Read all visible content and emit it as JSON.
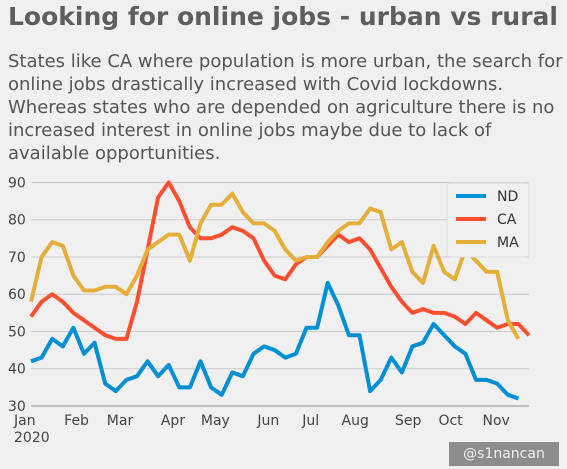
{
  "title": "Looking for online jobs - urban vs rural",
  "subtitle": "States like CA where population is more urban, the search for online jobs drastically increased with Covid lockdowns. Whereas states who are depended on agriculture there is no increased interest in online jobs maybe due to lack of available opportunities.",
  "watermark": "@s1nancan",
  "chart_data": {
    "type": "line",
    "xlabel": "",
    "ylabel": "",
    "ylim": [
      30,
      92
    ],
    "yticks": [
      30,
      40,
      50,
      60,
      70,
      80,
      90
    ],
    "grid": true,
    "legend": "top-right",
    "x_tick_labels": [
      {
        "week": 0,
        "label": "Jan",
        "sublabel": "2020"
      },
      {
        "week": 4.3,
        "label": "Feb"
      },
      {
        "week": 8.4,
        "label": "Mar"
      },
      {
        "week": 13.4,
        "label": "Apr"
      },
      {
        "week": 17.4,
        "label": "May"
      },
      {
        "week": 22.4,
        "label": "Jun"
      },
      {
        "week": 26.4,
        "label": "Jul"
      },
      {
        "week": 30.6,
        "label": "Aug"
      },
      {
        "week": 35.6,
        "label": "Sep"
      },
      {
        "week": 39.6,
        "label": "Oct"
      },
      {
        "week": 43.9,
        "label": "Nov"
      }
    ],
    "series": [
      {
        "name": "ND",
        "color": "#008fd5",
        "values": [
          42,
          43,
          48,
          46,
          51,
          44,
          47,
          36,
          34,
          37,
          38,
          42,
          38,
          41,
          35,
          35,
          42,
          35,
          33,
          39,
          38,
          44,
          46,
          45,
          43,
          44,
          51,
          51,
          63,
          57,
          49,
          49,
          34,
          37,
          43,
          39,
          46,
          47,
          52,
          49,
          46,
          44,
          37,
          37,
          36,
          33,
          32
        ]
      },
      {
        "name": "CA",
        "color": "#fc4f30",
        "values": [
          54,
          58,
          60,
          58,
          55,
          53,
          51,
          49,
          48,
          48,
          58,
          72,
          86,
          90,
          85,
          78,
          75,
          75,
          76,
          78,
          77,
          75,
          69,
          65,
          64,
          68,
          70,
          70,
          73,
          76,
          74,
          75,
          72,
          67,
          62,
          58,
          55,
          56,
          55,
          55,
          54,
          52,
          55,
          53,
          51,
          52,
          52,
          49
        ]
      },
      {
        "name": "MA",
        "color": "#e5ae38",
        "values": [
          58,
          70,
          74,
          73,
          65,
          61,
          61,
          62,
          62,
          60,
          65,
          72,
          74,
          76,
          76,
          69,
          79,
          84,
          84,
          87,
          82,
          79,
          79,
          77,
          72,
          69,
          70,
          70,
          74,
          77,
          79,
          79,
          83,
          82,
          72,
          74,
          66,
          63,
          73,
          66,
          64,
          72,
          69,
          66,
          66,
          53,
          48
        ]
      }
    ]
  }
}
